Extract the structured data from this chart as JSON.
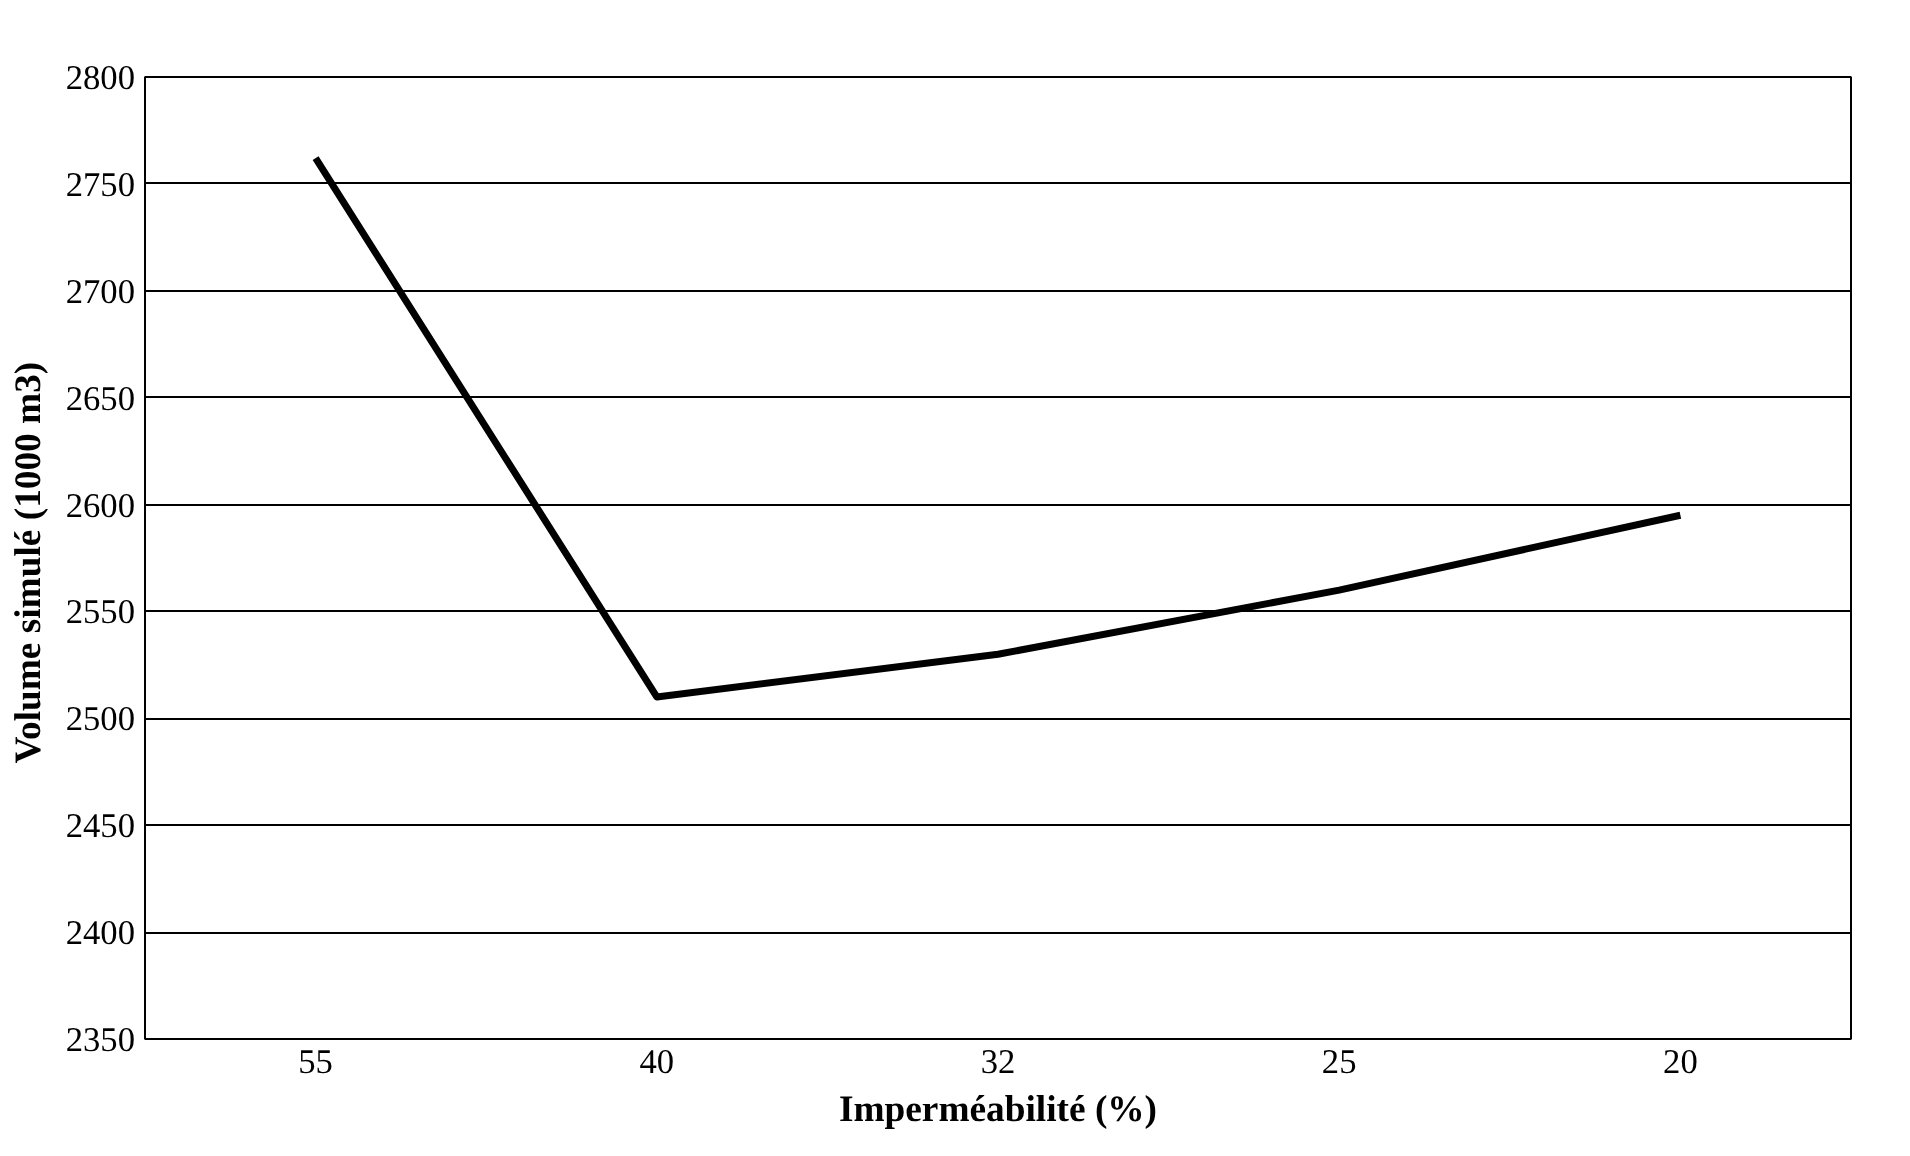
{
  "chart_data": {
    "type": "line",
    "xlabel": "Imperméabilité (%)",
    "ylabel": "Volume simulé  (1000 m3)",
    "categories": [
      "55",
      "40",
      "32",
      "25",
      "20"
    ],
    "series": [
      {
        "color": "#000000",
        "values": [
          2762,
          2510,
          2530,
          2560,
          2595
        ]
      }
    ],
    "ylim": [
      2350,
      2800
    ],
    "yticks": [
      2350,
      2400,
      2450,
      2500,
      2550,
      2600,
      2650,
      2700,
      2750,
      2800
    ],
    "grid": "y",
    "marker": "none",
    "line_style": "solid"
  }
}
